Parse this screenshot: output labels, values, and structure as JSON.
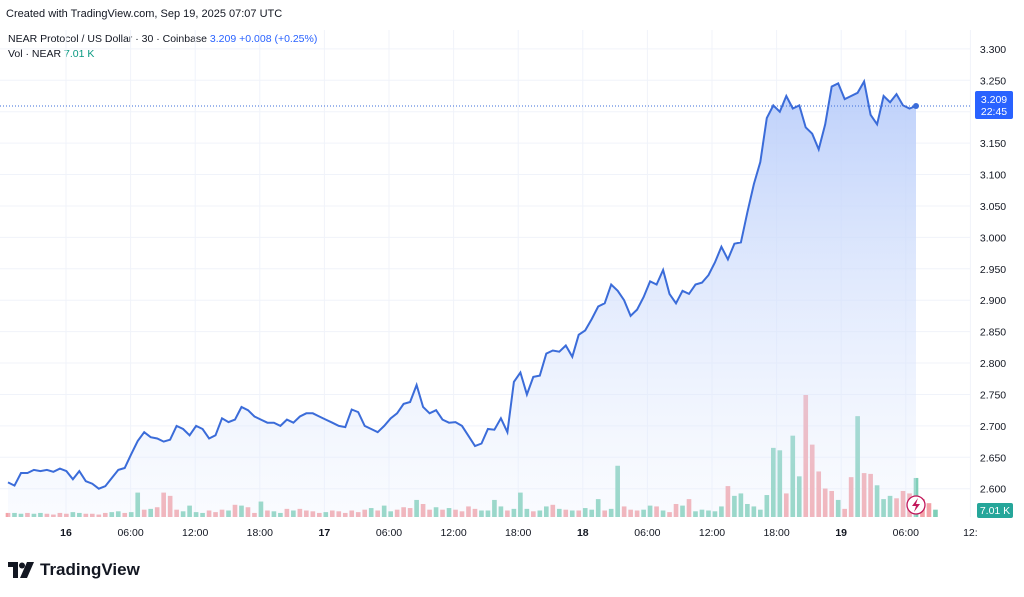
{
  "header": {
    "created_text": "Created with TradingView.com, Sep 19, 2025 07:07 UTC"
  },
  "legend": {
    "symbol_line": "NEAR Protocol / US Dollar · 30 · Coinbase",
    "last_price": "3.209",
    "change": "+0.008 (+0.25%)",
    "vol_label": "Vol · NEAR",
    "vol_value": "7.01 K"
  },
  "price_tag": {
    "value": "3.209",
    "countdown": "22:45"
  },
  "volume_tag": "7.01 K",
  "brand": {
    "name": "TradingView",
    "icon": "tradingview-logo-icon"
  },
  "colors": {
    "line": "#3b6cd9",
    "area_top": "#b9cdfa",
    "vol_up": "#7fcfb8",
    "vol_down": "#f3a3a8",
    "tag": "#2962ff"
  },
  "chart_data": {
    "type": "area",
    "series": [
      {
        "name": "NEAR/USD",
        "values": [
          2.61,
          2.605,
          2.625,
          2.625,
          2.63,
          2.628,
          2.63,
          2.627,
          2.632,
          2.628,
          2.615,
          2.628,
          2.612,
          2.608,
          2.6,
          2.604,
          2.617,
          2.63,
          2.633,
          2.655,
          2.676,
          2.69,
          2.682,
          2.68,
          2.675,
          2.678,
          2.7,
          2.695,
          2.685,
          2.7,
          2.695,
          2.68,
          2.685,
          2.712,
          2.706,
          2.71,
          2.73,
          2.725,
          2.715,
          2.71,
          2.705,
          2.705,
          2.7,
          2.71,
          2.705,
          2.715,
          2.72,
          2.72,
          2.715,
          2.71,
          2.705,
          2.7,
          2.698,
          2.726,
          2.722,
          2.7,
          2.695,
          2.69,
          2.7,
          2.712,
          2.72,
          2.735,
          2.738,
          2.765,
          2.73,
          2.72,
          2.725,
          2.71,
          2.705,
          2.706,
          2.7,
          2.684,
          2.668,
          2.672,
          2.695,
          2.694,
          2.712,
          2.69,
          2.77,
          2.785,
          2.75,
          2.778,
          2.78,
          2.815,
          2.82,
          2.818,
          2.828,
          2.81,
          2.845,
          2.852,
          2.87,
          2.89,
          2.895,
          2.925,
          2.915,
          2.9,
          2.875,
          2.885,
          2.905,
          2.93,
          2.925,
          2.948,
          2.91,
          2.895,
          2.915,
          2.91,
          2.925,
          2.928,
          2.94,
          2.96,
          2.985,
          2.965,
          2.99,
          2.992,
          3.04,
          3.085,
          3.12,
          3.19,
          3.21,
          3.2,
          3.225,
          3.205,
          3.21,
          3.175,
          3.165,
          3.14,
          3.18,
          3.24,
          3.245,
          3.22,
          3.225,
          3.23,
          3.248,
          3.195,
          3.18,
          3.225,
          3.215,
          3.228,
          3.21,
          3.205,
          3.209
        ]
      }
    ],
    "volume": [
      5,
      5,
      4,
      5,
      4,
      5,
      4,
      3,
      5,
      4,
      6,
      5,
      4,
      4,
      3,
      5,
      6,
      7,
      5,
      6,
      30,
      9,
      10,
      12,
      30,
      26,
      9,
      7,
      14,
      6,
      5,
      8,
      6,
      9,
      8,
      15,
      14,
      12,
      5,
      19,
      8,
      7,
      5,
      10,
      8,
      10,
      8,
      7,
      5,
      6,
      8,
      7,
      5,
      8,
      6,
      9,
      11,
      8,
      14,
      7,
      9,
      12,
      11,
      21,
      16,
      9,
      12,
      9,
      11,
      9,
      7,
      13,
      10,
      8,
      8,
      21,
      13,
      8,
      10,
      30,
      10,
      7,
      8,
      13,
      15,
      10,
      9,
      8,
      8,
      11,
      9,
      22,
      8,
      10,
      63,
      13,
      9,
      8,
      9,
      14,
      13,
      8,
      6,
      16,
      14,
      22,
      7,
      9,
      8,
      7,
      13,
      38,
      26,
      29,
      16,
      13,
      9,
      27,
      85,
      82,
      29,
      100,
      50,
      150,
      89,
      56,
      35,
      32,
      21,
      10,
      49,
      124,
      54,
      53,
      39,
      22,
      26,
      23,
      32,
      29,
      48,
      22,
      17,
      9
    ],
    "volume_up": [
      false,
      true,
      true,
      false,
      true,
      true,
      false,
      false,
      false,
      false,
      true,
      true,
      false,
      false,
      false,
      false,
      true,
      true,
      false,
      true,
      true,
      false,
      true,
      false,
      false,
      false,
      false,
      true,
      true,
      true,
      true,
      false,
      false,
      false,
      true,
      false,
      true,
      false,
      false,
      true,
      false,
      true,
      true,
      false,
      true,
      false,
      false,
      false,
      false,
      true,
      false,
      false,
      false,
      false,
      false,
      false,
      true,
      false,
      true,
      true,
      false,
      false,
      false,
      true,
      false,
      false,
      true,
      false,
      true,
      false,
      false,
      false,
      false,
      true,
      true,
      true,
      true,
      false,
      true,
      true,
      true,
      false,
      true,
      true,
      false,
      true,
      false,
      true,
      false,
      true,
      true,
      true,
      false,
      true,
      true,
      false,
      false,
      false,
      true,
      true,
      false,
      true,
      false,
      false,
      true,
      false,
      true,
      true,
      true,
      true,
      true,
      false,
      true,
      true,
      true,
      true,
      true,
      true,
      true,
      true,
      false,
      true,
      true,
      false,
      false,
      false,
      false,
      false,
      true,
      false,
      false,
      true,
      false,
      false,
      true,
      true,
      true,
      false,
      false,
      false,
      true,
      false,
      false,
      true
    ],
    "x_tick_labels": [
      "16",
      "06:00",
      "12:00",
      "18:00",
      "17",
      "06:00",
      "12:00",
      "18:00",
      "18",
      "06:00",
      "12:00",
      "18:00",
      "19",
      "06:00",
      "12:"
    ],
    "y_tick_labels": [
      "3.300",
      "3.250",
      "3.200",
      "3.150",
      "3.100",
      "3.050",
      "3.000",
      "2.950",
      "2.900",
      "2.850",
      "2.800",
      "2.750",
      "2.700",
      "2.650",
      "2.600"
    ],
    "y_ticks": [
      3.3,
      3.25,
      3.2,
      3.15,
      3.1,
      3.05,
      3.0,
      2.95,
      2.9,
      2.85,
      2.8,
      2.75,
      2.7,
      2.65,
      2.6
    ],
    "ylim": [
      2.555,
      3.33
    ],
    "grid": true
  }
}
